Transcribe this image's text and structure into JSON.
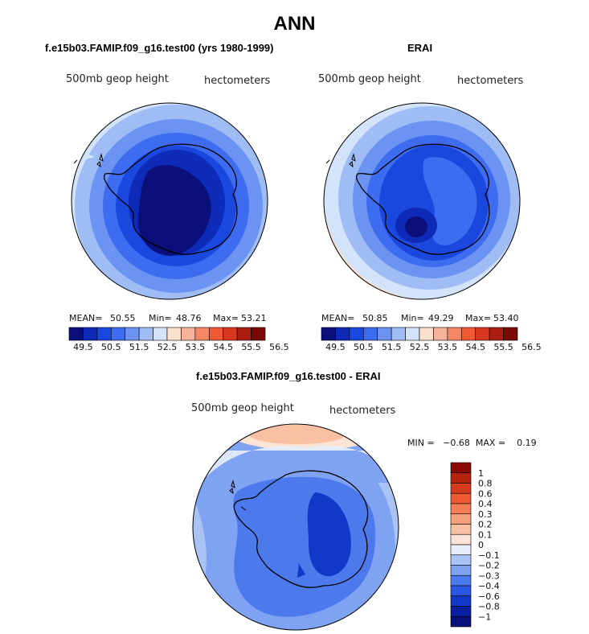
{
  "title": "ANN",
  "panels": [
    {
      "id": "model",
      "title": "f.e15b03.FAMIP.f09_g16.test00 (yrs 1980-1999)",
      "field_label": "500mb geop height",
      "units_label": "hectometers",
      "stats": {
        "mean_label": "MEAN=",
        "mean": "50.55",
        "min_label": "Min=",
        "min": "48.76",
        "max_label": "Max=",
        "max": "53.21"
      }
    },
    {
      "id": "obs",
      "title": "ERAI",
      "field_label": "500mb geop height",
      "units_label": "hectometers",
      "stats": {
        "mean_label": "MEAN=",
        "mean": "50.85",
        "min_label": "Min=",
        "min": "49.29",
        "max_label": "Max=",
        "max": "53.40"
      }
    },
    {
      "id": "diff",
      "title": "f.e15b03.FAMIP.f09_g16.test00 - ERAI",
      "field_label": "500mb geop height",
      "units_label": "hectometers",
      "minmax": "MIN =   −0.68  MAX =    0.19"
    }
  ],
  "chart_data": [
    {
      "type": "heatmap",
      "title": "f.e15b03.FAMIP.f09_g16.test00 (yrs 1980-1999)",
      "variable": "500mb geop height",
      "units": "hectometers",
      "projection": "south polar stereographic",
      "colorbar_ticks": [
        "49.5",
        "50.5",
        "51.5",
        "52.5",
        "53.5",
        "54.5",
        "55.5",
        "56.5"
      ],
      "colorbar_colors": [
        "#0a0f7a",
        "#0d2bb8",
        "#1a48de",
        "#3d6cf0",
        "#6b94f2",
        "#9fbdf4",
        "#d3e3f9",
        "#fde0cd",
        "#f8b39a",
        "#f48666",
        "#ef5a35",
        "#d7361f",
        "#ac1d12",
        "#7a0805"
      ],
      "mean": 50.55,
      "min": 48.76,
      "max": 53.21
    },
    {
      "type": "heatmap",
      "title": "ERAI",
      "variable": "500mb geop height",
      "units": "hectometers",
      "projection": "south polar stereographic",
      "colorbar_ticks": [
        "49.5",
        "50.5",
        "51.5",
        "52.5",
        "53.5",
        "54.5",
        "55.5",
        "56.5"
      ],
      "colorbar_colors": [
        "#0a0f7a",
        "#0d2bb8",
        "#1a48de",
        "#3d6cf0",
        "#6b94f2",
        "#9fbdf4",
        "#d3e3f9",
        "#fde0cd",
        "#f8b39a",
        "#f48666",
        "#ef5a35",
        "#d7361f",
        "#ac1d12",
        "#7a0805"
      ],
      "mean": 50.85,
      "min": 49.29,
      "max": 53.4
    },
    {
      "type": "heatmap",
      "title": "f.e15b03.FAMIP.f09_g16.test00 - ERAI",
      "variable": "500mb geop height",
      "units": "hectometers",
      "projection": "south polar stereographic",
      "colorbar_ticks": [
        "1",
        "0.8",
        "0.6",
        "0.4",
        "0.3",
        "0.2",
        "0.1",
        "0",
        "−0.1",
        "−0.2",
        "−0.3",
        "−0.4",
        "−0.6",
        "−0.8",
        "−1"
      ],
      "colorbar_colors": [
        "#8a0a05",
        "#b5230f",
        "#d63a1e",
        "#ee5a34",
        "#f47e55",
        "#f7a07c",
        "#f9c0a3",
        "#fde3d3",
        "#e7eefa",
        "#a9c3f4",
        "#7fa3f2",
        "#4c79ec",
        "#2957e3",
        "#1238c8",
        "#0a1fa0",
        "#070f7a"
      ],
      "min": -0.68,
      "max": 0.19
    }
  ]
}
